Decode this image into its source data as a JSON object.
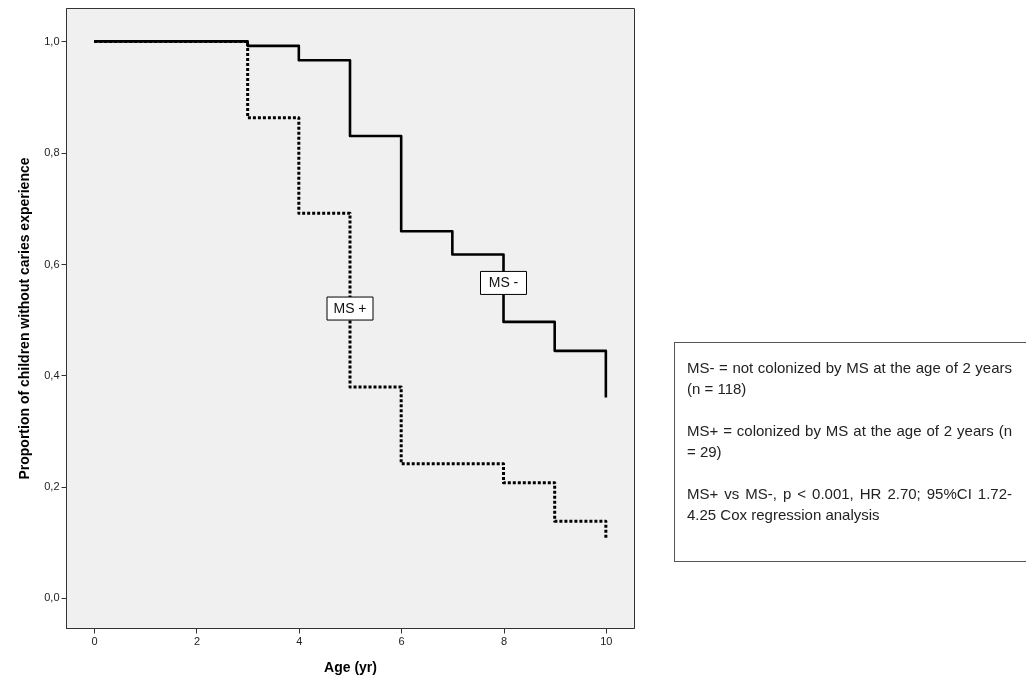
{
  "chart_data": {
    "type": "step",
    "xlabel": "Age (yr)",
    "ylabel": "Proportion of children without caries experience",
    "xlim": [
      -0.55,
      10.55
    ],
    "ylim": [
      -0.054,
      1.06
    ],
    "xticks": [
      0,
      2,
      4,
      6,
      8,
      10
    ],
    "yticks": [
      {
        "value": 0,
        "label": "0,0"
      },
      {
        "value": 0.2,
        "label": "0,2"
      },
      {
        "value": 0.4,
        "label": "0,4"
      },
      {
        "value": 0.6,
        "label": "0,6"
      },
      {
        "value": 0.8,
        "label": "0,8"
      },
      {
        "value": 1,
        "label": "1,0"
      }
    ],
    "grid": false,
    "marker": "none",
    "series": [
      {
        "color": "#000000",
        "line_style": "solid",
        "x": [
          0,
          3,
          4,
          5,
          6,
          7,
          8,
          9,
          10
        ],
        "values": [
          1,
          0.992,
          0.966,
          0.83,
          0.659,
          0.617,
          0.496,
          0.444,
          0.36
        ]
      },
      {
        "color": "#000000",
        "line_style": "dotted",
        "x": [
          0,
          3,
          4,
          5,
          6,
          8,
          9,
          10
        ],
        "values": [
          1,
          0.863,
          0.691,
          0.379,
          0.241,
          0.207,
          0.138,
          0.105
        ]
      }
    ],
    "annotations": [
      {
        "text": "MS -",
        "x": 8,
        "y": 0.566
      },
      {
        "text": "MS +",
        "x": 5,
        "y": 0.52
      },
      "MS- = not colonized by MS at the age of 2 years (n = 118)",
      "MS+ = colonized by MS at the age of 2 years (n = 29)",
      "MS+ vs MS-, p < 0.001, HR 2.70; 95%CI 1.72-4.25 Cox regression analysis"
    ]
  }
}
